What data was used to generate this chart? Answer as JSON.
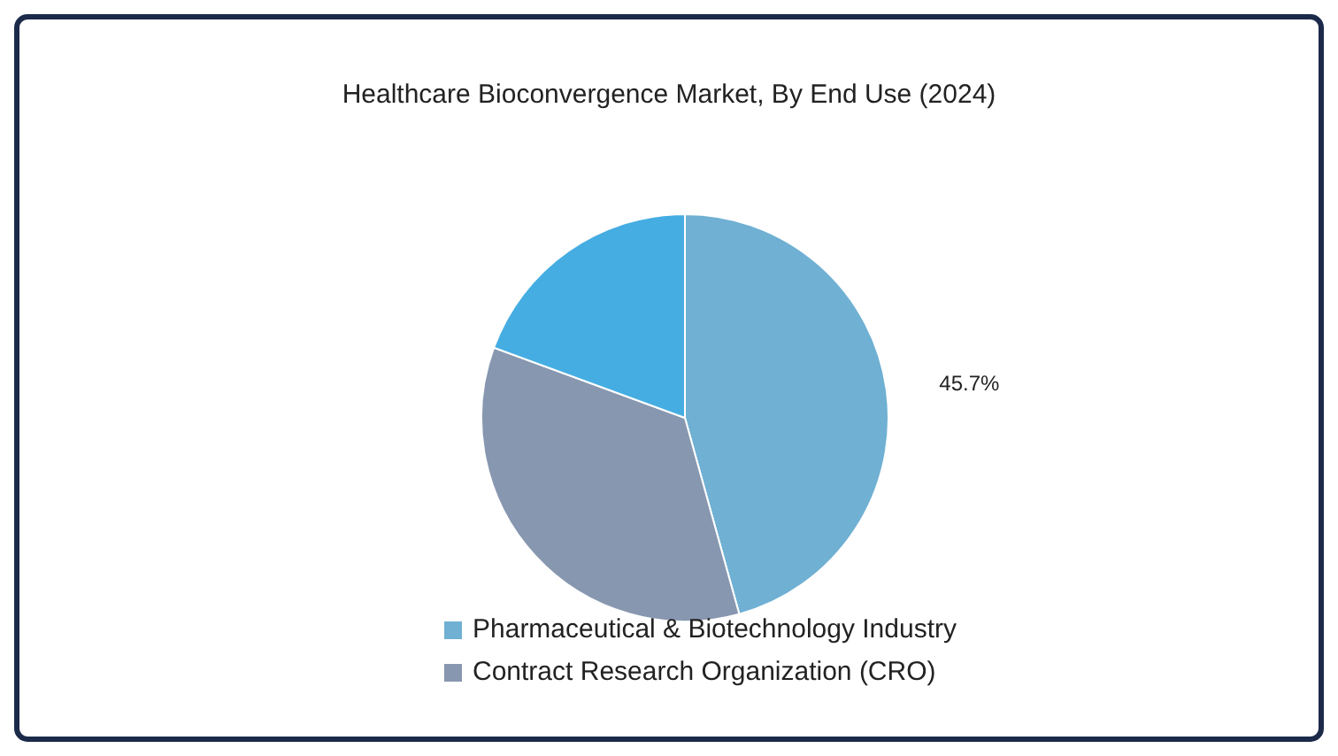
{
  "chart_data": {
    "type": "pie",
    "title": "Healthcare Bioconvergence Market, By End Use (2024)",
    "categories": [
      "Pharmaceutical & Biotechnology Industry",
      "Contract Research Organization (CRO)",
      null
    ],
    "values": [
      45.7,
      34.9,
      19.4
    ],
    "colors": [
      "#6fb0d3",
      "#8797b0",
      "#45ade2"
    ],
    "value_labels": [
      "45.7%",
      null,
      null
    ],
    "legend": "bottom"
  }
}
